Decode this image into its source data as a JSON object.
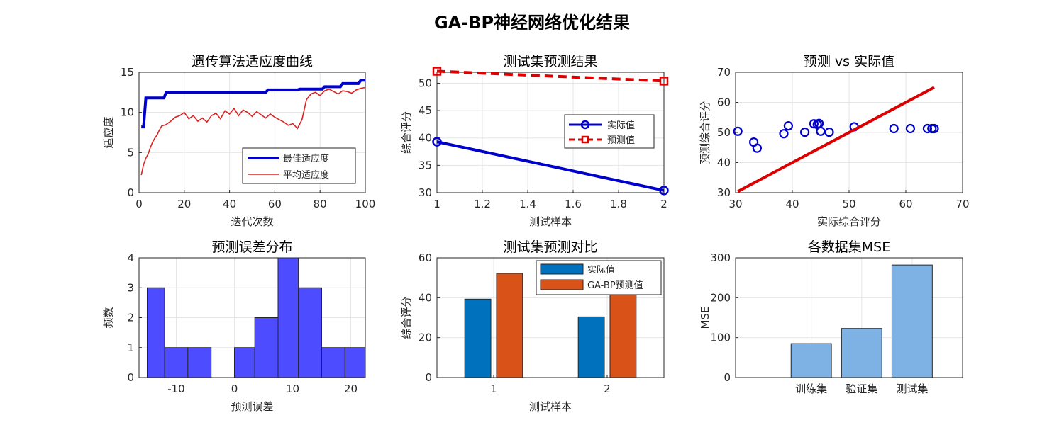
{
  "figure_title": "GA-BP神经网络优化结果",
  "chart_data": [
    {
      "type": "line",
      "title": "遗传算法适应度曲线",
      "xlabel": "迭代次数",
      "ylabel": "适应度",
      "xlim": [
        0,
        100
      ],
      "ylim": [
        0,
        15
      ],
      "xticks": [
        0,
        20,
        40,
        60,
        80,
        100
      ],
      "yticks": [
        0,
        5,
        10,
        15
      ],
      "grid": true,
      "legend_position": "bottom-right",
      "series": [
        {
          "name": "最佳适应度",
          "color": "#0000cc",
          "x": [
            1,
            2,
            3,
            11,
            12,
            56,
            57,
            70,
            71,
            81,
            82,
            89,
            90,
            97,
            98,
            100
          ],
          "y": [
            8.2,
            8.2,
            11.8,
            11.8,
            12.5,
            12.5,
            12.8,
            12.8,
            12.9,
            12.9,
            13.2,
            13.2,
            13.6,
            13.6,
            14.0,
            14.0
          ]
        },
        {
          "name": "平均适应度",
          "color": "#dd2222",
          "x": [
            1,
            2,
            3,
            4,
            5,
            6,
            7,
            8,
            9,
            10,
            12,
            14,
            16,
            18,
            20,
            22,
            24,
            26,
            28,
            30,
            32,
            34,
            36,
            38,
            40,
            42,
            44,
            46,
            48,
            50,
            52,
            54,
            56,
            58,
            60,
            62,
            64,
            66,
            68,
            70,
            72,
            74,
            76,
            78,
            80,
            82,
            84,
            86,
            88,
            90,
            92,
            94,
            96,
            98,
            100
          ],
          "y": [
            2.2,
            3.5,
            4.3,
            4.8,
            5.6,
            6.3,
            6.8,
            7.2,
            7.8,
            8.3,
            8.5,
            8.9,
            9.4,
            9.6,
            10.0,
            9.2,
            9.6,
            8.9,
            9.3,
            8.8,
            9.6,
            9.9,
            9.2,
            10.2,
            9.8,
            10.5,
            9.6,
            10.3,
            10.0,
            9.5,
            10.1,
            9.7,
            9.3,
            9.8,
            9.4,
            9.1,
            8.8,
            8.4,
            8.6,
            8.0,
            9.1,
            11.6,
            12.3,
            12.5,
            12.1,
            12.7,
            12.9,
            12.6,
            12.3,
            12.7,
            12.6,
            12.4,
            12.8,
            13.0,
            13.1
          ]
        }
      ]
    },
    {
      "type": "line",
      "title": "测试集预测结果",
      "xlabel": "测试样本",
      "ylabel": "综合评分",
      "xlim": [
        1,
        2
      ],
      "ylim": [
        30,
        52
      ],
      "xticks": [
        1,
        1.2,
        1.4,
        1.6,
        1.8,
        2
      ],
      "yticks": [
        30,
        35,
        40,
        45,
        50
      ],
      "grid": true,
      "legend_position": "right",
      "series": [
        {
          "name": "实际值",
          "color": "#0000cc",
          "marker": "circle",
          "x": [
            1,
            2
          ],
          "y": [
            39.3,
            30.4
          ]
        },
        {
          "name": "预测值",
          "color": "#dd0000",
          "marker": "square",
          "line": "dashed",
          "x": [
            1,
            2
          ],
          "y": [
            52.2,
            50.4
          ]
        }
      ]
    },
    {
      "type": "scatter",
      "title": "预测 vs 实际值",
      "xlabel": "实际综合评分",
      "ylabel": "预测综合评分",
      "xlim": [
        30,
        70
      ],
      "ylim": [
        30,
        70
      ],
      "xticks": [
        30,
        40,
        50,
        60,
        70
      ],
      "yticks": [
        30,
        40,
        50,
        60,
        70
      ],
      "grid": true,
      "points": [
        [
          30.4,
          50.4
        ],
        [
          33.2,
          46.8
        ],
        [
          33.8,
          44.8
        ],
        [
          38.5,
          49.6
        ],
        [
          39.3,
          52.2
        ],
        [
          42.2,
          50.1
        ],
        [
          43.8,
          52.9
        ],
        [
          44.4,
          52.7
        ],
        [
          44.7,
          53.0
        ],
        [
          45.0,
          50.4
        ],
        [
          46.5,
          50.1
        ],
        [
          50.9,
          51.9
        ],
        [
          57.9,
          51.3
        ],
        [
          60.8,
          51.3
        ],
        [
          63.8,
          51.3
        ],
        [
          64.6,
          51.3
        ],
        [
          65.0,
          51.3
        ]
      ],
      "reference_line": {
        "x": [
          30.4,
          65.0
        ],
        "y": [
          30.4,
          65.0
        ],
        "color": "#dd0000"
      }
    },
    {
      "type": "bar",
      "title": "预测误差分布",
      "xlabel": "预测误差",
      "ylabel": "频数",
      "xlim": [
        -16.4,
        22.5
      ],
      "ylim": [
        0,
        4
      ],
      "xticks": [
        -10,
        0,
        10,
        20
      ],
      "yticks": [
        0,
        1,
        2,
        3,
        4
      ],
      "grid": true,
      "bar_color": "#4d4dff",
      "bins": [
        {
          "from": -15.0,
          "to": -12.0,
          "count": 3
        },
        {
          "from": -12.0,
          "to": -8.0,
          "count": 1
        },
        {
          "from": -8.0,
          "to": -4.0,
          "count": 1
        },
        {
          "from": -4.0,
          "to": 0.0,
          "count": 0
        },
        {
          "from": 0.0,
          "to": 3.5,
          "count": 1
        },
        {
          "from": 3.5,
          "to": 7.5,
          "count": 2
        },
        {
          "from": 7.5,
          "to": 11.0,
          "count": 4
        },
        {
          "from": 11.0,
          "to": 15.0,
          "count": 3
        },
        {
          "from": 15.0,
          "to": 19.0,
          "count": 1
        },
        {
          "from": 19.0,
          "to": 22.5,
          "count": 1
        }
      ]
    },
    {
      "type": "bar",
      "title": "测试集预测对比",
      "xlabel": "测试样本",
      "ylabel": "综合评分",
      "categories": [
        "1",
        "2"
      ],
      "ylim": [
        0,
        60
      ],
      "yticks": [
        0,
        20,
        40,
        60
      ],
      "grid": true,
      "legend_position": "top-right",
      "series": [
        {
          "name": "实际值",
          "color": "#0072bd",
          "values": [
            39.3,
            30.4
          ]
        },
        {
          "name": "GA-BP预测值",
          "color": "#d95319",
          "values": [
            52.2,
            50.4
          ]
        }
      ]
    },
    {
      "type": "bar",
      "title": "各数据集MSE",
      "xlabel": "",
      "ylabel": "MSE",
      "categories": [
        "训练集",
        "验证集",
        "测试集"
      ],
      "values": [
        85,
        123,
        282
      ],
      "ylim": [
        0,
        300
      ],
      "yticks": [
        0,
        100,
        200,
        300
      ],
      "grid": true,
      "bar_color": "#7eb2e4"
    }
  ]
}
